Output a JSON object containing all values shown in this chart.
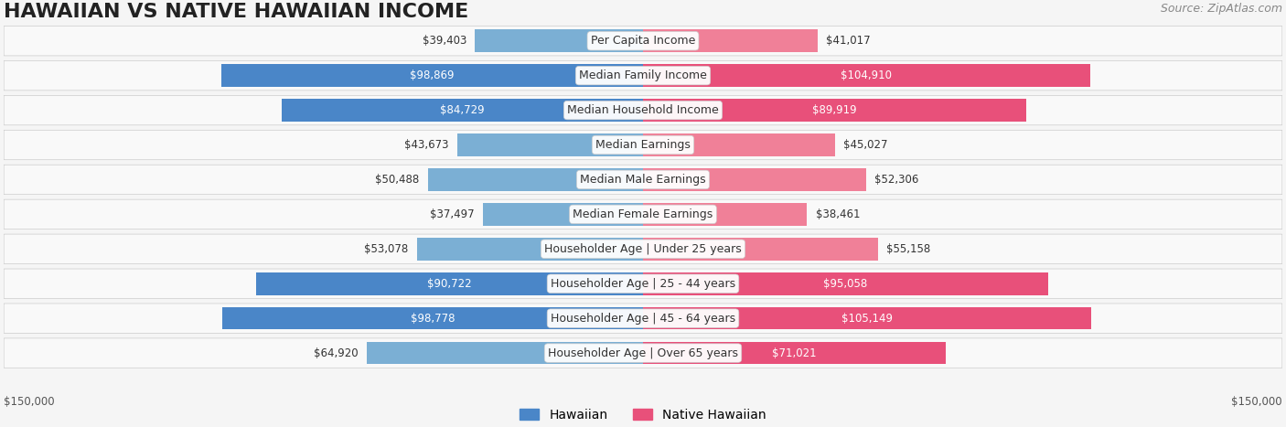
{
  "title": "HAWAIIAN VS NATIVE HAWAIIAN INCOME",
  "source": "Source: ZipAtlas.com",
  "categories": [
    "Per Capita Income",
    "Median Family Income",
    "Median Household Income",
    "Median Earnings",
    "Median Male Earnings",
    "Median Female Earnings",
    "Householder Age | Under 25 years",
    "Householder Age | 25 - 44 years",
    "Householder Age | 45 - 64 years",
    "Householder Age | Over 65 years"
  ],
  "hawaiian_values": [
    39403,
    98869,
    84729,
    43673,
    50488,
    37497,
    53078,
    90722,
    98778,
    64920
  ],
  "native_hawaiian_values": [
    41017,
    104910,
    89919,
    45027,
    52306,
    38461,
    55158,
    95058,
    105149,
    71021
  ],
  "hawaiian_color": "#7bafd4",
  "hawaiian_dark_color": "#4a86c8",
  "native_hawaiian_color": "#f08098",
  "native_hawaiian_dark_color": "#e8507a",
  "max_value": 150000,
  "background_color": "#f5f5f5",
  "row_bg_color": "#ffffff",
  "label_bg_color": "#f0f0f0",
  "title_fontsize": 16,
  "label_fontsize": 9,
  "value_fontsize": 8.5,
  "source_fontsize": 9
}
